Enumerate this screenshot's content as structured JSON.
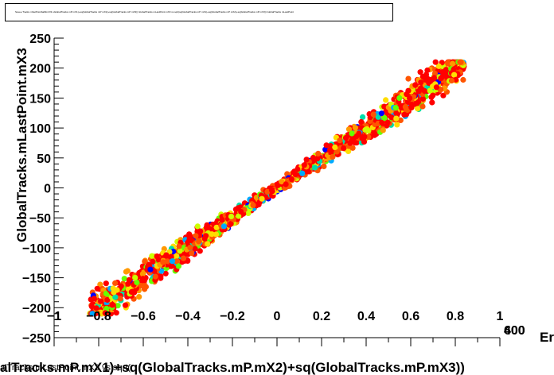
{
  "stats_box": {
    "text": "Sevee Tracks mSetPointbaMimX/3 uGlobalTracks mP mX1)+sq(GlobalTracks mP mX2)+sq(GlobalTracks mP mX3)) GlobalTracks mLastPoint mX3 vs sqrt(sq(GlobalTracks mP mX1)+sq(GlobalTracks mP mX2)+sq(GlobalTracks mP mX3)) GlobalTracks mLastPoint"
  },
  "colors": {
    "palette": [
      "#0000ff",
      "#00aaff",
      "#00ddaa",
      "#66ff00",
      "#ccff00",
      "#ffdd00",
      "#ff9900",
      "#ff5500",
      "#ff0000"
    ],
    "axis": "#000000"
  },
  "chart_data": {
    "type": "scatter",
    "title": "",
    "xlabel": "alTracks.mP.mX1)+sq(GlobalTracks.mP.mX2)+sq(GlobalTracks.mP.mX3))",
    "ylabel": "GlobalTracks.mLastPoint.mX3",
    "xlim": [
      -1,
      1
    ],
    "ylim": [
      -250,
      250
    ],
    "x_ticks": [
      "-1",
      "-0.8",
      "-0.6",
      "-0.4",
      "-0.2",
      "0",
      "0.2",
      "0.4",
      "0.6",
      "0.8",
      "1"
    ],
    "y_ticks": [
      "-250",
      "-200",
      "-150",
      "-100",
      "-50",
      "0",
      "50",
      "100",
      "150",
      "200",
      "250"
    ],
    "right_edge_labels": [
      "600",
      "400"
    ],
    "right_edge_title": "Er",
    "bottom_overlay_text": "alTracks.mLastPoint.mX3 vs sqrt(",
    "grid": false,
    "band": {
      "x_range": [
        -0.84,
        0.84
      ],
      "y_at_x_min": -210,
      "y_at_x_max": 210,
      "y_saturation": [
        -210,
        210
      ],
      "point_count": 1500,
      "color_channel": "energy"
    }
  }
}
